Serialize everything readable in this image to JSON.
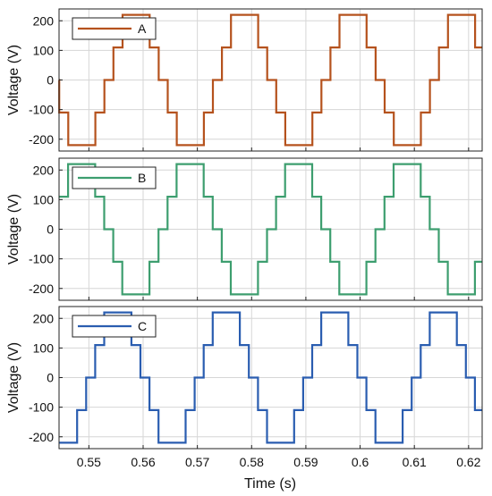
{
  "chart_data": [
    {
      "type": "line",
      "series": [
        {
          "name": "A",
          "color": "#b5521d"
        }
      ],
      "ylabel": "Voltage (V)",
      "xlim": [
        0.5445,
        0.6225
      ],
      "ylim": [
        -240,
        240
      ],
      "yticks": [
        200,
        100,
        0,
        -100,
        -200
      ],
      "grid": true,
      "legend": "top-left",
      "waveform": {
        "levels": [
          -220,
          -110,
          0,
          110,
          220
        ],
        "period_s": 0.02,
        "steps_per_period": 12,
        "step_start_s": 0.5512,
        "first_step_index": 11
      }
    },
    {
      "type": "line",
      "series": [
        {
          "name": "B",
          "color": "#3d9e6f"
        }
      ],
      "ylabel": "Voltage (V)",
      "xlim": [
        0.5445,
        0.6225
      ],
      "ylim": [
        -240,
        240
      ],
      "yticks": [
        200,
        100,
        0,
        -100,
        -200
      ],
      "grid": true,
      "legend": "top-left",
      "waveform": {
        "levels": [
          -220,
          -110,
          0,
          110,
          220
        ],
        "period_s": 0.02,
        "steps_per_period": 12,
        "step_start_s": 0.5445,
        "first_step_index": 1
      }
    },
    {
      "type": "line",
      "series": [
        {
          "name": "C",
          "color": "#2a5db0"
        }
      ],
      "ylabel": "Voltage (V)",
      "xlim": [
        0.5445,
        0.6225
      ],
      "ylim": [
        -240,
        240
      ],
      "yticks": [
        200,
        100,
        0,
        -100,
        -200
      ],
      "grid": true,
      "legend": "top-left",
      "waveform": {
        "levels": [
          -220,
          -110,
          0,
          110,
          220
        ],
        "period_s": 0.02,
        "steps_per_period": 12,
        "step_start_s": 0.5445,
        "first_step_index": 9
      }
    }
  ],
  "xlabel": "Time (s)",
  "xticks": [
    0.55,
    0.56,
    0.57,
    0.58,
    0.59,
    0.6,
    0.61,
    0.62
  ],
  "xtick_labels": [
    "0.55",
    "0.56",
    "0.57",
    "0.58",
    "0.59",
    "0.6",
    "0.61",
    "0.62"
  ]
}
